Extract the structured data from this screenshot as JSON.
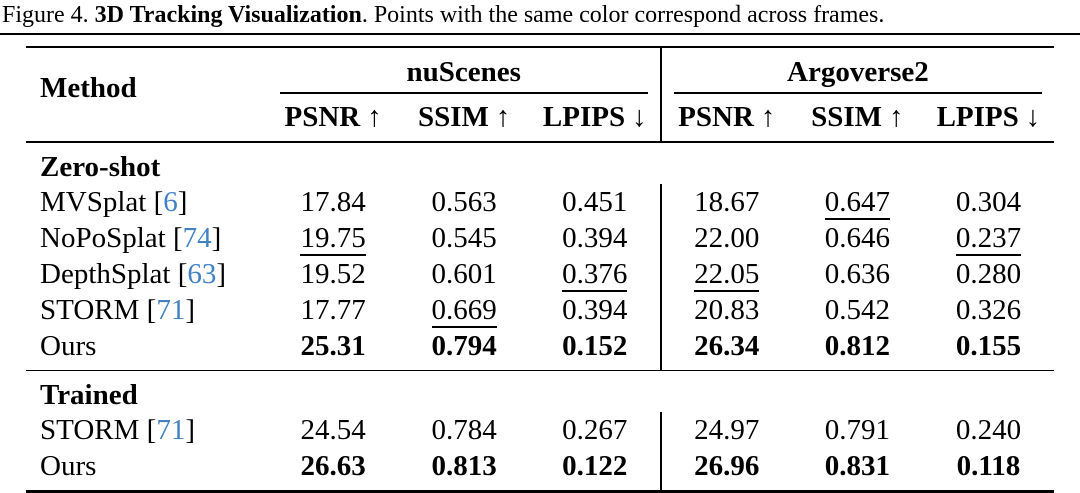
{
  "caption": {
    "figure_label": "Figure 4.",
    "figure_title": "3D Tracking Visualization",
    "figure_text": ". Points with the same color correspond across frames."
  },
  "table": {
    "accent_color": "#4181c4",
    "method_header": "Method",
    "groups": [
      {
        "label": "nuScenes"
      },
      {
        "label": "Argoverse2"
      }
    ],
    "metric_headers": [
      {
        "label": "PSNR",
        "arrow": "↑"
      },
      {
        "label": "SSIM",
        "arrow": "↑"
      },
      {
        "label": "LPIPS",
        "arrow": "↓"
      },
      {
        "label": "PSNR",
        "arrow": "↑"
      },
      {
        "label": "SSIM",
        "arrow": "↑"
      },
      {
        "label": "LPIPS",
        "arrow": "↓"
      }
    ],
    "sections": [
      {
        "label": "Zero-shot",
        "rows": [
          {
            "method": "MVSplat",
            "cite": "6",
            "values": [
              {
                "v": "17.84",
                "style": "plain"
              },
              {
                "v": "0.563",
                "style": "plain"
              },
              {
                "v": "0.451",
                "style": "plain"
              },
              {
                "v": "18.67",
                "style": "plain"
              },
              {
                "v": "0.647",
                "style": "underline"
              },
              {
                "v": "0.304",
                "style": "plain"
              }
            ]
          },
          {
            "method": "NoPoSplat",
            "cite": "74",
            "values": [
              {
                "v": "19.75",
                "style": "underline"
              },
              {
                "v": "0.545",
                "style": "plain"
              },
              {
                "v": "0.394",
                "style": "plain"
              },
              {
                "v": "22.00",
                "style": "plain"
              },
              {
                "v": "0.646",
                "style": "plain"
              },
              {
                "v": "0.237",
                "style": "underline"
              }
            ]
          },
          {
            "method": "DepthSplat",
            "cite": "63",
            "values": [
              {
                "v": "19.52",
                "style": "plain"
              },
              {
                "v": "0.601",
                "style": "plain"
              },
              {
                "v": "0.376",
                "style": "underline"
              },
              {
                "v": "22.05",
                "style": "underline"
              },
              {
                "v": "0.636",
                "style": "plain"
              },
              {
                "v": "0.280",
                "style": "plain"
              }
            ]
          },
          {
            "method": "STORM",
            "cite": "71",
            "values": [
              {
                "v": "17.77",
                "style": "plain"
              },
              {
                "v": "0.669",
                "style": "underline"
              },
              {
                "v": "0.394",
                "style": "plain"
              },
              {
                "v": "20.83",
                "style": "plain"
              },
              {
                "v": "0.542",
                "style": "plain"
              },
              {
                "v": "0.326",
                "style": "plain"
              }
            ]
          },
          {
            "method": "Ours",
            "cite": "",
            "values": [
              {
                "v": "25.31",
                "style": "bold"
              },
              {
                "v": "0.794",
                "style": "bold"
              },
              {
                "v": "0.152",
                "style": "bold"
              },
              {
                "v": "26.34",
                "style": "bold"
              },
              {
                "v": "0.812",
                "style": "bold"
              },
              {
                "v": "0.155",
                "style": "bold"
              }
            ]
          }
        ]
      },
      {
        "label": "Trained",
        "rows": [
          {
            "method": "STORM",
            "cite": "71",
            "values": [
              {
                "v": "24.54",
                "style": "plain"
              },
              {
                "v": "0.784",
                "style": "plain"
              },
              {
                "v": "0.267",
                "style": "plain"
              },
              {
                "v": "24.97",
                "style": "plain"
              },
              {
                "v": "0.791",
                "style": "plain"
              },
              {
                "v": "0.240",
                "style": "plain"
              }
            ]
          },
          {
            "method": "Ours",
            "cite": "",
            "values": [
              {
                "v": "26.63",
                "style": "bold"
              },
              {
                "v": "0.813",
                "style": "bold"
              },
              {
                "v": "0.122",
                "style": "bold"
              },
              {
                "v": "26.96",
                "style": "bold"
              },
              {
                "v": "0.831",
                "style": "bold"
              },
              {
                "v": "0.118",
                "style": "bold"
              }
            ]
          }
        ]
      }
    ]
  }
}
